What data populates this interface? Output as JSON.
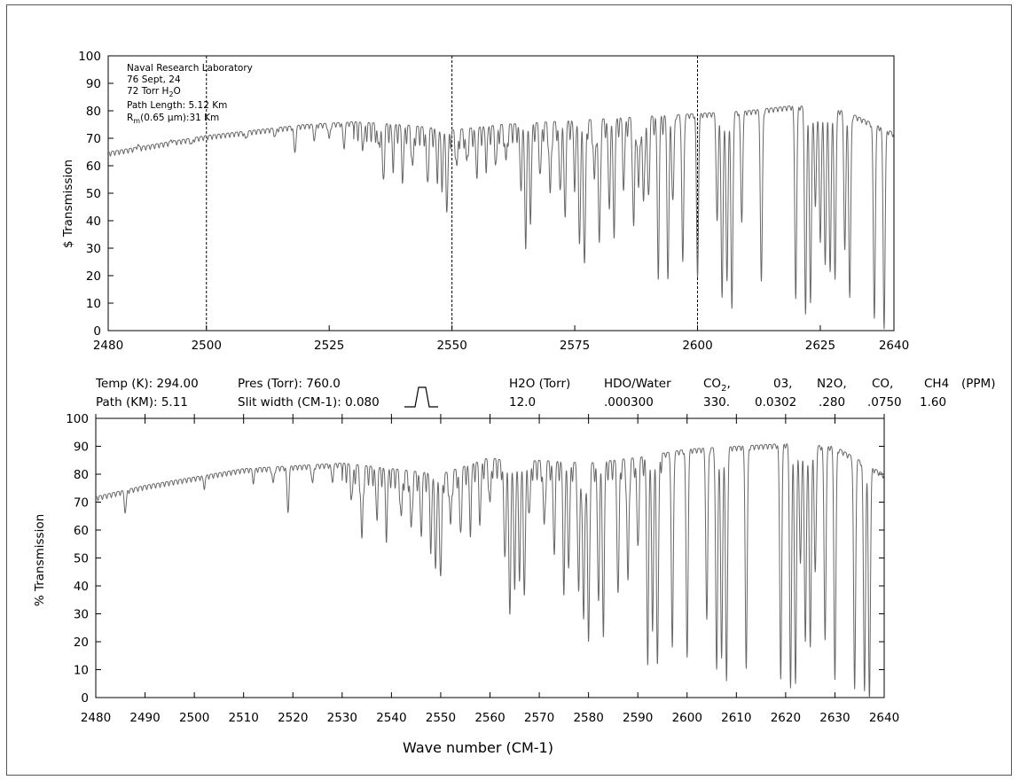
{
  "chart_data": [
    {
      "type": "line",
      "title": "",
      "ylabel": "$ Transmission",
      "xlabel": "",
      "xlim": [
        2480,
        2640
      ],
      "ylim": [
        0,
        100
      ],
      "x_ticks": [
        2480,
        2500,
        2525,
        2550,
        2575,
        2600,
        2625,
        2640
      ],
      "y_ticks": [
        0,
        10,
        20,
        30,
        40,
        50,
        60,
        70,
        80,
        90,
        100
      ],
      "dashed_vlines": [
        2500,
        2550,
        2600
      ],
      "annotation": {
        "lines": [
          "Naval Research Laboratory",
          "76 Sept, 24",
          "72 Torr H",
          "Path Length: 5.12 Km",
          "R",
          "(0.65 μm):31 Km"
        ],
        "h2o_subscript": "2",
        "h2o_suffix": "O",
        "rm_subscript": "m"
      },
      "series": [
        {
          "baseline": [
            [
              2480,
              65
            ],
            [
              2490,
              68
            ],
            [
              2500,
              71
            ],
            [
              2510,
              73
            ],
            [
              2520,
              75
            ],
            [
              2530,
              76
            ],
            [
              2540,
              75
            ],
            [
              2550,
              73
            ],
            [
              2560,
              75
            ],
            [
              2570,
              76
            ],
            [
              2580,
              77
            ],
            [
              2590,
              78
            ],
            [
              2600,
              79
            ],
            [
              2610,
              80
            ],
            [
              2620,
              82
            ],
            [
              2630,
              80
            ],
            [
              2640,
              72
            ]
          ],
          "lines": [
            [
              2486,
              68
            ],
            [
              2493,
              70
            ],
            [
              2497,
              68
            ],
            [
              2508,
              70
            ],
            [
              2514,
              71
            ],
            [
              2518,
              65
            ],
            [
              2522,
              70
            ],
            [
              2525,
              70
            ],
            [
              2528,
              67
            ],
            [
              2532,
              69
            ],
            [
              2535,
              68
            ],
            [
              2536,
              56
            ],
            [
              2538,
              64
            ],
            [
              2540,
              58
            ],
            [
              2542,
              60
            ],
            [
              2545,
              55
            ],
            [
              2547,
              60
            ],
            [
              2548,
              57
            ],
            [
              2549,
              47
            ],
            [
              2551,
              60
            ],
            [
              2553,
              62
            ],
            [
              2555,
              60
            ],
            [
              2557,
              64
            ],
            [
              2559,
              62
            ],
            [
              2561,
              62
            ],
            [
              2564,
              55
            ],
            [
              2565,
              36
            ],
            [
              2566,
              45
            ],
            [
              2568,
              58
            ],
            [
              2570,
              50
            ],
            [
              2572,
              52
            ],
            [
              2573,
              45
            ],
            [
              2575,
              57
            ],
            [
              2576,
              35
            ],
            [
              2577,
              25
            ],
            [
              2579,
              55
            ],
            [
              2580,
              32
            ],
            [
              2582,
              48
            ],
            [
              2583,
              40
            ],
            [
              2585,
              55
            ],
            [
              2587,
              38
            ],
            [
              2588,
              52
            ],
            [
              2589,
              47
            ],
            [
              2590,
              50
            ],
            [
              2592,
              25
            ],
            [
              2594,
              22
            ],
            [
              2595,
              48
            ],
            [
              2597,
              25
            ],
            [
              2600,
              20
            ],
            [
              2604,
              40
            ],
            [
              2605,
              12
            ],
            [
              2606,
              18
            ],
            [
              2607,
              8
            ],
            [
              2609,
              40
            ],
            [
              2613,
              18
            ],
            [
              2620,
              13
            ],
            [
              2622,
              6
            ],
            [
              2623,
              10
            ],
            [
              2624,
              45
            ],
            [
              2625,
              32
            ],
            [
              2626,
              24
            ],
            [
              2627,
              22
            ],
            [
              2628,
              20
            ],
            [
              2630,
              30
            ],
            [
              2631,
              12
            ],
            [
              2636,
              5
            ],
            [
              2638,
              2
            ]
          ]
        }
      ]
    },
    {
      "type": "line",
      "title": "",
      "ylabel": "% Transmission",
      "xlabel": "Wave number (CM-1)",
      "xlim": [
        2480,
        2640
      ],
      "ylim": [
        0,
        100
      ],
      "x_ticks": [
        2480,
        2490,
        2500,
        2510,
        2520,
        2530,
        2540,
        2550,
        2560,
        2570,
        2580,
        2590,
        2600,
        2610,
        2620,
        2630,
        2640
      ],
      "y_ticks": [
        0,
        10,
        20,
        30,
        40,
        50,
        60,
        70,
        80,
        90,
        100
      ],
      "series": [
        {
          "baseline": [
            [
              2480,
              72
            ],
            [
              2490,
              76
            ],
            [
              2500,
              79
            ],
            [
              2510,
              82
            ],
            [
              2520,
              83
            ],
            [
              2530,
              84
            ],
            [
              2540,
              82
            ],
            [
              2550,
              80
            ],
            [
              2560,
              86
            ],
            [
              2565,
              84
            ],
            [
              2570,
              85
            ],
            [
              2580,
              84
            ],
            [
              2590,
              86
            ],
            [
              2600,
              89
            ],
            [
              2610,
              90
            ],
            [
              2620,
              91
            ],
            [
              2630,
              90
            ],
            [
              2640,
              80
            ]
          ],
          "lines": [
            [
              2486,
              67
            ],
            [
              2502,
              76
            ],
            [
              2512,
              78
            ],
            [
              2516,
              77
            ],
            [
              2519,
              67
            ],
            [
              2524,
              77
            ],
            [
              2528,
              78
            ],
            [
              2532,
              73
            ],
            [
              2534,
              57
            ],
            [
              2537,
              68
            ],
            [
              2539,
              62
            ],
            [
              2542,
              65
            ],
            [
              2544,
              61
            ],
            [
              2546,
              62
            ],
            [
              2548,
              58
            ],
            [
              2549,
              50
            ],
            [
              2550,
              44
            ],
            [
              2552,
              62
            ],
            [
              2554,
              60
            ],
            [
              2556,
              64
            ],
            [
              2558,
              66
            ],
            [
              2560,
              70
            ],
            [
              2563,
              51
            ],
            [
              2564,
              33
            ],
            [
              2565,
              45
            ],
            [
              2566,
              48
            ],
            [
              2567,
              40
            ],
            [
              2568,
              67
            ],
            [
              2571,
              62
            ],
            [
              2573,
              55
            ],
            [
              2575,
              43
            ],
            [
              2576,
              50
            ],
            [
              2578,
              38
            ],
            [
              2579,
              28
            ],
            [
              2580,
              20
            ],
            [
              2582,
              38
            ],
            [
              2583,
              28
            ],
            [
              2586,
              38
            ],
            [
              2588,
              42
            ],
            [
              2590,
              55
            ],
            [
              2592,
              18
            ],
            [
              2593,
              30
            ],
            [
              2594,
              15
            ],
            [
              2597,
              18
            ],
            [
              2600,
              15
            ],
            [
              2604,
              28
            ],
            [
              2606,
              10
            ],
            [
              2607,
              14
            ],
            [
              2608,
              6
            ],
            [
              2612,
              11
            ],
            [
              2619,
              8
            ],
            [
              2621,
              4
            ],
            [
              2622,
              5
            ],
            [
              2623,
              48
            ],
            [
              2624,
              20
            ],
            [
              2625,
              18
            ],
            [
              2626,
              45
            ],
            [
              2628,
              22
            ],
            [
              2630,
              7
            ],
            [
              2634,
              3
            ],
            [
              2636,
              3
            ],
            [
              2637,
              0
            ]
          ]
        }
      ]
    }
  ],
  "parameters": {
    "temp_label": "Temp (K): 294.00",
    "path_label": "Path (KM): 5.11",
    "pres_label": "Pres (Torr): 760.0",
    "slit_label": "Slit width (CM-1): 0.080",
    "h2o_header": "H2O (Torr)",
    "h2o_value": "12.0",
    "hdo_header": "HDO/Water",
    "hdo_value": ".000300",
    "co2_header_base": "CO",
    "co2_header_sub": "2",
    "co2_header_suffix": ",",
    "co2_value": "330.",
    "o3_header": "03,",
    "o3_value": "0.0302",
    "n2o_header": "N2O,",
    "n2o_value": ".280",
    "co_header": "CO,",
    "co_value": ".0750",
    "ch4_header": "CH4",
    "ch4_value": "1.60",
    "ppm_header": "(PPM)"
  }
}
